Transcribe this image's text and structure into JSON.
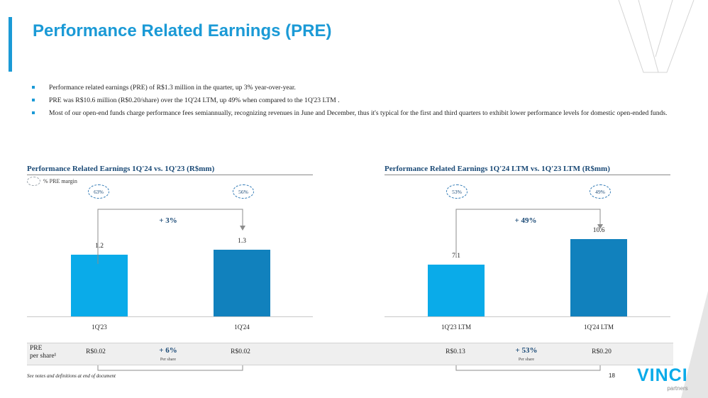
{
  "title": "Performance Related Earnings (PRE)",
  "bullets": [
    "Performance related earnings (PRE) of R$1.3 million in the quarter, up 3% year-over-year.",
    "PRE was R$10.6 million (R$0.20/share) over the 1Q'24 LTM, up 49% when compared to the 1Q'23 LTM .",
    "Most of our open-end funds charge performance fees semiannually, recognizing revenues in June and December, thus it's typical for the first and third quarters to exhibit lower performance levels for domestic open-ended funds."
  ],
  "legend_label": "% PRE margin",
  "chart_data": [
    {
      "type": "bar",
      "title": "Performance Related Earnings 1Q'24 vs. 1Q'23 (R$mm)",
      "categories": [
        "1Q'23",
        "1Q'24"
      ],
      "values": [
        1.2,
        1.3
      ],
      "value_labels": [
        "1.2",
        "1.3"
      ],
      "margins": [
        "63%",
        "56%"
      ],
      "growth": "+ 3%",
      "ylim": [
        0,
        1.8
      ],
      "colors": [
        "#0aabe9",
        "#1181bd"
      ]
    },
    {
      "type": "bar",
      "title": "Performance Related Earnings 1Q'24 LTM vs. 1Q'23 LTM (R$mm)",
      "categories": [
        "1Q'23 LTM",
        "1Q'24 LTM"
      ],
      "values": [
        7.1,
        10.6
      ],
      "value_labels": [
        "7.1",
        "10.6"
      ],
      "margins": [
        "53%",
        "49%"
      ],
      "growth": "+ 49%",
      "ylim": [
        0,
        12.7
      ],
      "colors": [
        "#0aabe9",
        "#1181bd"
      ]
    }
  ],
  "per_share": {
    "label_line1": "PRE",
    "label_line2": "per share¹",
    "left": {
      "v1": "R$0.02",
      "v2": "R$0.02",
      "growth": "+ 6%",
      "sub": "Per share"
    },
    "right": {
      "v1": "R$0.13",
      "v2": "R$0.20",
      "growth": "+ 53%",
      "sub": "Per share"
    }
  },
  "footnote": "See notes and definitions at end of document",
  "page_number": "18",
  "logo": {
    "name": "VINCI",
    "sub": "partners"
  }
}
